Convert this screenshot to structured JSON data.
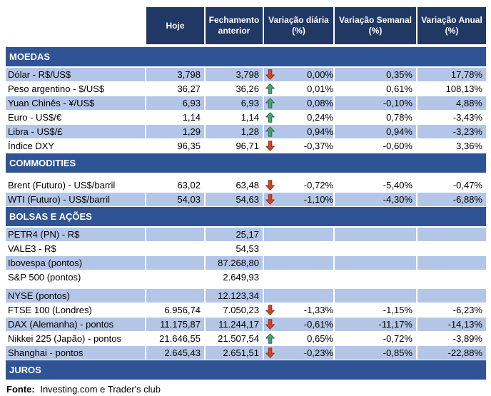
{
  "colors": {
    "header_bg": "#1F3864",
    "section_bg": "#2F5496",
    "row_alt_bg": "#B4C6E7",
    "up_arrow": "#4F9E78",
    "up_arrow_stroke": "#2F6E50",
    "down_arrow": "#C9482B",
    "down_arrow_stroke": "#963015"
  },
  "table": {
    "columns": [
      "Hoje",
      "Fechamento anterior",
      "Variação diária (%)",
      "Variação Semanal (%)",
      "Variação Anual (%)"
    ],
    "sections": [
      {
        "title": "MOEDAS",
        "rows": [
          {
            "label": "Dólar - R$/US$",
            "hoje": "3,798",
            "fechamento": "3,798",
            "arrow": "down",
            "var_diaria": "0,00%",
            "var_semanal": "0,35%",
            "var_anual": "17,78%",
            "shaded": true
          },
          {
            "label": "Peso argentino - $/US$",
            "hoje": "36,27",
            "fechamento": "36,26",
            "arrow": "up",
            "var_diaria": "0,01%",
            "var_semanal": "0,61%",
            "var_anual": "108,13%",
            "shaded": false
          },
          {
            "label": "Yuan Chinês - ¥/US$",
            "hoje": "6,93",
            "fechamento": "6,93",
            "arrow": "up",
            "var_diaria": "0,08%",
            "var_semanal": "-0,10%",
            "var_anual": "4,88%",
            "shaded": true
          },
          {
            "label": "Euro - US$/€",
            "hoje": "1,14",
            "fechamento": "1,14",
            "arrow": "up",
            "var_diaria": "0,24%",
            "var_semanal": "0,78%",
            "var_anual": "-3,43%",
            "shaded": false
          },
          {
            "label": "Libra - US$/£",
            "hoje": "1,29",
            "fechamento": "1,28",
            "arrow": "up",
            "var_diaria": "0,94%",
            "var_semanal": "0,94%",
            "var_anual": "-3,23%",
            "shaded": true
          },
          {
            "label": "Índice DXY",
            "hoje": "96,35",
            "fechamento": "96,71",
            "arrow": "down",
            "var_diaria": "-0,37%",
            "var_semanal": "-0,60%",
            "var_anual": "3,36%",
            "shaded": false
          }
        ]
      },
      {
        "title": "COMMODITIES",
        "rows": [
          {
            "spacer": true
          },
          {
            "label": "Brent (Futuro) - US$/barril",
            "hoje": "63,02",
            "fechamento": "63,48",
            "arrow": "down",
            "var_diaria": "-0,72%",
            "var_semanal": "-5,40%",
            "var_anual": "-0,47%",
            "shaded": false
          },
          {
            "label": "WTI (Futuro) - US$/barril",
            "hoje": "54,03",
            "fechamento": "54,63",
            "arrow": "down",
            "var_diaria": "-1,10%",
            "var_semanal": "-4,30%",
            "var_anual": "-6,88%",
            "shaded": true
          }
        ]
      },
      {
        "title": "BOLSAS E AÇÕES",
        "rows": [
          {
            "label": "PETR4 (PN) - R$",
            "hoje": "",
            "fechamento": "25,17",
            "arrow": "",
            "var_diaria": "",
            "var_semanal": "",
            "var_anual": "",
            "shaded": true
          },
          {
            "label": "VALE3 - R$",
            "hoje": "",
            "fechamento": "54,53",
            "arrow": "",
            "var_diaria": "",
            "var_semanal": "",
            "var_anual": "",
            "shaded": false
          },
          {
            "label": "Ibovespa (pontos)",
            "hoje": "",
            "fechamento": "87.268,80",
            "arrow": "",
            "var_diaria": "",
            "var_semanal": "",
            "var_anual": "",
            "shaded": true
          },
          {
            "label": "S&P 500 (pontos)",
            "hoje": "",
            "fechamento": "2.649,93",
            "arrow": "",
            "var_diaria": "",
            "var_semanal": "",
            "var_anual": "",
            "shaded": false
          },
          {
            "spacer": true
          },
          {
            "label": "NYSE (pontos)",
            "hoje": "",
            "fechamento": "12.123,34",
            "arrow": "",
            "var_diaria": "",
            "var_semanal": "",
            "var_anual": "",
            "shaded": true
          },
          {
            "label": "FTSE 100 (Londres)",
            "hoje": "6.956,74",
            "fechamento": "7.050,23",
            "arrow": "down",
            "var_diaria": "-1,33%",
            "var_semanal": "-1,15%",
            "var_anual": "-6,23%",
            "shaded": false
          },
          {
            "label": "DAX (Alemanha) - pontos",
            "hoje": "11.175,87",
            "fechamento": "11.244,17",
            "arrow": "down",
            "var_diaria": "-0,61%",
            "var_semanal": "-11,17%",
            "var_anual": "-14,13%",
            "shaded": true
          },
          {
            "label": "Nikkei 225 (Japão) - pontos",
            "hoje": "21.646,55",
            "fechamento": "21.507,54",
            "arrow": "up",
            "var_diaria": "0,65%",
            "var_semanal": "-0,72%",
            "var_anual": "-3,89%",
            "shaded": false
          },
          {
            "label": "Shanghai - pontos",
            "hoje": "2.645,43",
            "fechamento": "2.651,51",
            "arrow": "down",
            "var_diaria": "-0,23%",
            "var_semanal": "-0,85%",
            "var_anual": "-22,88%",
            "shaded": true
          }
        ]
      },
      {
        "title": "JUROS",
        "rows": []
      }
    ]
  },
  "footer": {
    "label": "Fonte:",
    "text": "Investing.com e Trader's club"
  }
}
